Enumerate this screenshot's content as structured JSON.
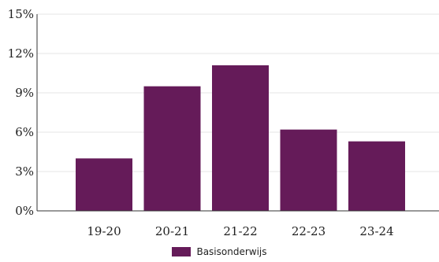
{
  "chart_data": {
    "type": "bar",
    "categories": [
      "19-20",
      "20-21",
      "21-22",
      "22-23",
      "23-24"
    ],
    "series": [
      {
        "name": "Basisonderwijs",
        "values": [
          4.0,
          9.5,
          11.1,
          6.2,
          5.3
        ],
        "color": "#651b59"
      }
    ],
    "ylim": [
      0,
      15
    ],
    "yticks": [
      0,
      3,
      6,
      9,
      12,
      15
    ],
    "ytick_labels": [
      "0%",
      "3%",
      "6%",
      "9%",
      "12%",
      "15%"
    ],
    "grid": true,
    "legend_position": "bottom-center"
  }
}
